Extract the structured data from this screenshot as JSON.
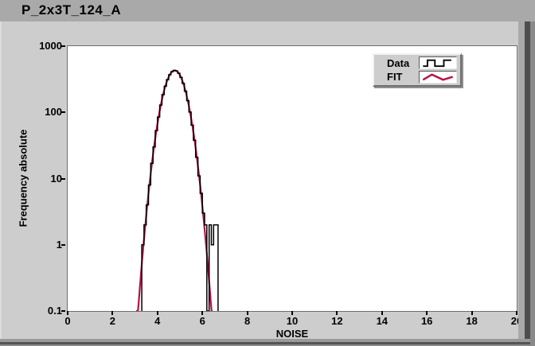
{
  "window": {
    "title": "P_2x3T_124_A"
  },
  "legend": {
    "items": [
      {
        "label": "Data",
        "icon": "square-wave-icon"
      },
      {
        "label": "FIT",
        "icon": "zigzag-line-icon"
      }
    ]
  },
  "chart_data": {
    "type": "bar",
    "subtype": "histogram-with-fit",
    "title": "P_2x3T_124_A",
    "xlabel": "NOISE",
    "ylabel": "Frequency absolute",
    "xlim": [
      0,
      20
    ],
    "ylim": [
      0.1,
      1000
    ],
    "yscale": "log",
    "grid": false,
    "legend_position": "top-right",
    "x_ticks": [
      0,
      2,
      4,
      6,
      8,
      10,
      12,
      14,
      16,
      18,
      20
    ],
    "y_ticks": [
      1000,
      100,
      10,
      1,
      0.1
    ],
    "y_tick_labels": [
      "1000",
      "100",
      "10",
      "1",
      "0.1"
    ],
    "colors": {
      "data": "#000000",
      "fit": "#b80f4a",
      "plot_bg": "#ffffff",
      "panel_bg": "#cdcdcd",
      "titlebar_bg": "#a9a9a9"
    },
    "series": [
      {
        "name": "Data",
        "type": "histogram-steps",
        "color": "#000000",
        "bin_start": 3.3,
        "bin_width": 0.1,
        "counts": [
          1,
          2,
          4,
          8,
          17,
          30,
          53,
          85,
          129,
          185,
          248,
          312,
          370,
          411,
          429,
          421,
          389,
          337,
          274,
          209,
          150,
          101,
          64,
          38,
          21,
          11,
          6,
          3,
          2,
          0,
          2,
          1,
          2,
          2
        ]
      },
      {
        "name": "FIT",
        "type": "gaussian-fit",
        "color": "#b80f4a",
        "amplitude": 430,
        "mean": 4.77,
        "sigma": 0.4,
        "x_range": [
          3.05,
          6.45
        ]
      }
    ]
  }
}
